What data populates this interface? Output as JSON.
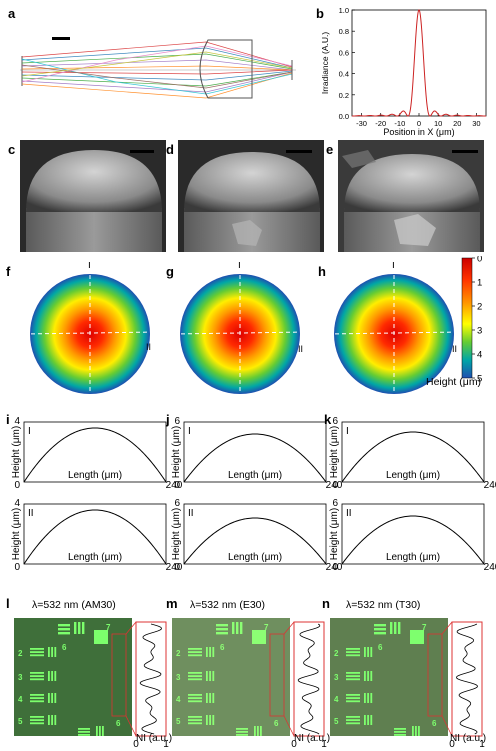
{
  "panels": {
    "a": "a",
    "b": "b",
    "c": "c",
    "d": "d",
    "e": "e",
    "f": "f",
    "g": "g",
    "h": "h",
    "i": "i",
    "j": "j",
    "k": "k",
    "l": "l",
    "m": "m",
    "n": "n"
  },
  "irradiance_chart": {
    "type": "line",
    "ylabel": "Irradiance (A.U.)",
    "xlabel": "Position in X (μm)",
    "xlim": [
      -35,
      35
    ],
    "ylim": [
      0,
      1.0
    ],
    "xticks": [
      "-30",
      "-20",
      "-10",
      "0",
      "10",
      "20",
      "30"
    ],
    "yticks": [
      "0.0",
      "0.2",
      "0.4",
      "0.6",
      "0.8",
      "1.0"
    ],
    "series_color": "#cc2222"
  },
  "colorbar": {
    "ticks": [
      "0",
      "1",
      "2",
      "3",
      "4",
      "5"
    ],
    "label": "Height (μm)",
    "colors": [
      "#cc0000",
      "#ff3300",
      "#ff9900",
      "#ffff00",
      "#66cc33",
      "#00a6a6",
      "#1f4fb0"
    ]
  },
  "height_maps": {
    "axis_I": "I",
    "axis_II": "II"
  },
  "chart_data": [
    {
      "panel": "i",
      "type": "line",
      "profile": "I",
      "xlabel": "Length (μm)",
      "ylabel": "Height (μm)",
      "xlim": [
        0,
        240
      ],
      "ylim": [
        0,
        4
      ],
      "x_max_label": "240",
      "x_min_label": "0",
      "y_max_label": "4",
      "peak": 3.6
    },
    {
      "panel": "j",
      "type": "line",
      "profile": "I",
      "xlabel": "Length (μm)",
      "ylabel": "Height (μm)",
      "xlim": [
        0,
        240
      ],
      "ylim": [
        0,
        6
      ],
      "x_max_label": "240",
      "x_min_label": "0",
      "y_max_label": "6",
      "peak": 4.8
    },
    {
      "panel": "k",
      "type": "line",
      "profile": "I",
      "xlabel": "Length (μm)",
      "ylabel": "Height (μm)",
      "xlim": [
        0,
        240
      ],
      "ylim": [
        0,
        6
      ],
      "x_max_label": "240",
      "x_min_label": "0",
      "y_max_label": "6",
      "peak": 5.0
    },
    {
      "panel": "i2",
      "type": "line",
      "profile": "II",
      "xlabel": "Length (μm)",
      "ylabel": "Height (μm)",
      "xlim": [
        0,
        240
      ],
      "ylim": [
        0,
        4
      ],
      "x_max_label": "240",
      "x_min_label": "0",
      "y_max_label": "4",
      "peak": 3.6
    },
    {
      "panel": "j2",
      "type": "line",
      "profile": "II",
      "xlabel": "Length (μm)",
      "ylabel": "Height (μm)",
      "xlim": [
        0,
        240
      ],
      "ylim": [
        0,
        6
      ],
      "x_max_label": "240",
      "x_min_label": "0",
      "y_max_label": "6",
      "peak": 4.6
    },
    {
      "panel": "k2",
      "type": "line",
      "profile": "II",
      "xlabel": "Length (μm)",
      "ylabel": "Height (μm)",
      "xlim": [
        0,
        240
      ],
      "ylim": [
        0,
        6
      ],
      "x_max_label": "240",
      "x_min_label": "0",
      "y_max_label": "6",
      "peak": 4.8
    }
  ],
  "resolution_images": [
    {
      "panel": "l",
      "title": "λ=532 nm (AM30)",
      "xaxis_label": "NI (a.u.)",
      "tick0": "0",
      "tick1": "1"
    },
    {
      "panel": "m",
      "title": "λ=532 nm (E30)",
      "xaxis_label": "NI (a.u.)",
      "tick0": "0",
      "tick1": "1"
    },
    {
      "panel": "n",
      "title": "λ=532 nm (T30)",
      "xaxis_label": "NI (a.u.)",
      "tick0": "0",
      "tick1": "1"
    }
  ],
  "target_digits": {
    "d2": "2",
    "d3": "3",
    "d4": "4",
    "d5": "5",
    "d6": "6",
    "d7": "7"
  }
}
